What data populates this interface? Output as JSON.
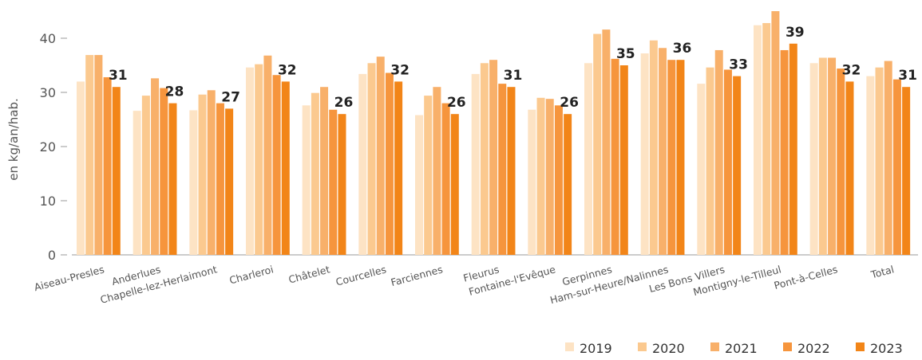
{
  "chart_data": {
    "type": "bar",
    "y_label": "en kg/an/hab.",
    "categories": [
      "Aiseau-Presles",
      "Anderlues",
      "Chapelle-lez-Herlaimont",
      "Charleroi",
      "Châtelet",
      "Courcelles",
      "Farciennes",
      "Fleurus",
      "Fontaine-l'Evêque",
      "Gerpinnes",
      "Ham-sur-Heure/Nalinnes",
      "Les Bons Villers",
      "Montigny-le-Tilleul",
      "Pont-à-Celles",
      "Total"
    ],
    "series": [
      {
        "name": "2019",
        "color": "#fde3c4",
        "values": [
          32,
          26.6,
          26.7,
          34.6,
          27.6,
          33.4,
          25.8,
          33.4,
          26.8,
          35.4,
          37.2,
          31.6,
          42.4,
          35.4,
          33
        ]
      },
      {
        "name": "2020",
        "color": "#fbc98f",
        "values": [
          36.9,
          29.4,
          29.6,
          35.2,
          29.9,
          35.4,
          29.4,
          35.4,
          29,
          40.8,
          39.6,
          34.6,
          42.8,
          36.4,
          34.6
        ]
      },
      {
        "name": "2021",
        "color": "#f8b06a",
        "values": [
          36.9,
          32.6,
          30.4,
          36.8,
          31,
          36.6,
          31,
          36,
          28.8,
          41.6,
          38.2,
          37.8,
          45,
          36.4,
          35.8
        ]
      },
      {
        "name": "2022",
        "color": "#f6953d",
        "values": [
          32.8,
          30.8,
          28,
          33.2,
          26.8,
          33.6,
          28,
          31.6,
          27.6,
          36.2,
          36,
          34.2,
          37.8,
          34.4,
          32.4
        ]
      },
      {
        "name": "2023",
        "color": "#f28518",
        "values": [
          31,
          28,
          27,
          32,
          26,
          32,
          26,
          31,
          26,
          35,
          36,
          33,
          39,
          32,
          31
        ]
      }
    ],
    "ylim": [
      0,
      46
    ],
    "yticks": [
      0,
      10,
      20,
      30,
      40
    ]
  }
}
